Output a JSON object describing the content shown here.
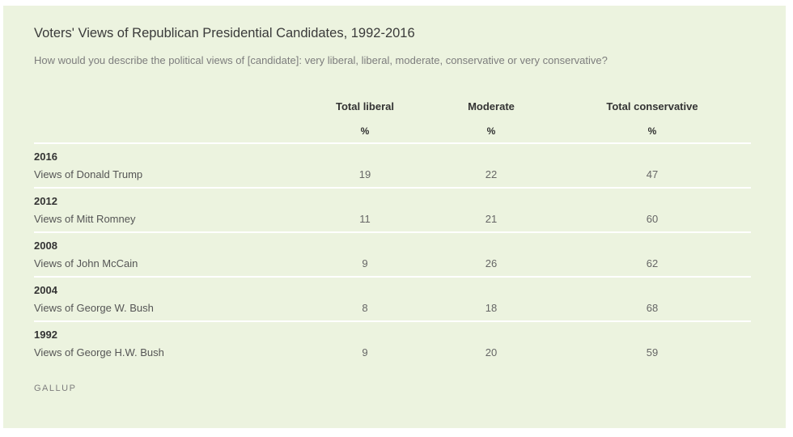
{
  "chart_data": {
    "type": "table",
    "title": "Voters' Views of Republican Presidential Candidates, 1992-2016",
    "subtitle": "How would you describe the political views of [candidate]: very liberal, liberal, moderate, conservative or very conservative?",
    "columns": [
      {
        "name": "Total liberal",
        "unit": "%"
      },
      {
        "name": "Moderate",
        "unit": "%"
      },
      {
        "name": "Total conservative",
        "unit": "%"
      }
    ],
    "rows": [
      {
        "year": "2016",
        "label": "Views of Donald Trump",
        "values": [
          "19",
          "22",
          "47"
        ]
      },
      {
        "year": "2012",
        "label": "Views of Mitt Romney",
        "values": [
          "11",
          "21",
          "60"
        ]
      },
      {
        "year": "2008",
        "label": "Views of John McCain",
        "values": [
          "9",
          "26",
          "62"
        ]
      },
      {
        "year": "2004",
        "label": "Views of George W. Bush",
        "values": [
          "8",
          "18",
          "68"
        ]
      },
      {
        "year": "1992",
        "label": "Views of George H.W. Bush",
        "values": [
          "9",
          "20",
          "59"
        ]
      }
    ],
    "source": "GALLUP"
  },
  "colors": {
    "panel_background": "#ecf3df",
    "row_rule": "#ffffff",
    "text_dark": "#333333",
    "text_muted": "#7d7d7d"
  }
}
